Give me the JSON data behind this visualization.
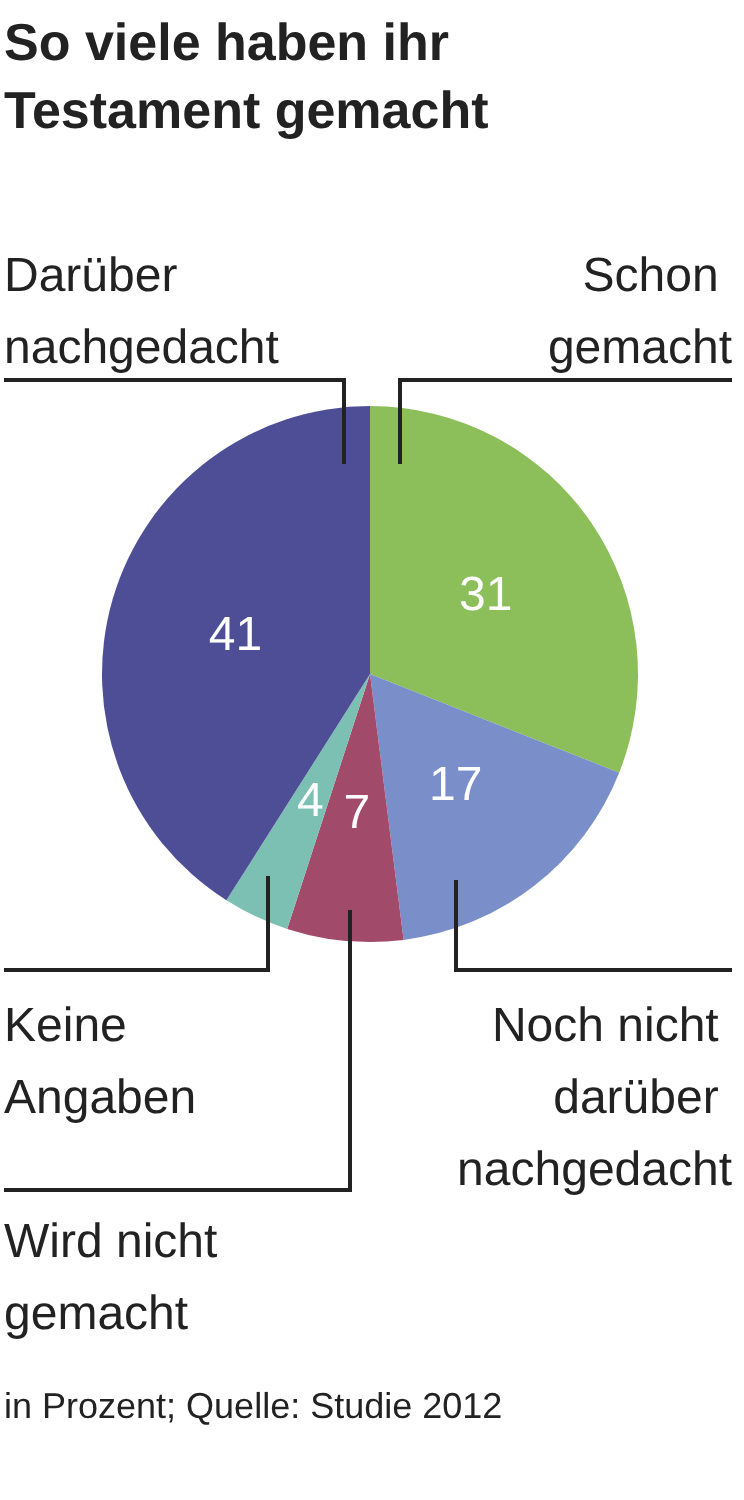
{
  "chart_data": {
    "type": "pie",
    "title": "So viele haben ihr Testament gemacht",
    "categories": [
      "Schon gemacht",
      "Noch nicht darüber nachgedacht",
      "Wird nicht gemacht",
      "Keine Angaben",
      "Darüber nachgedacht"
    ],
    "values": [
      31,
      17,
      7,
      4,
      41
    ],
    "colors": [
      "#8cbf5a",
      "#7a8fc9",
      "#a24a6a",
      "#7cc0b4",
      "#4e4e96"
    ],
    "data_labels": true,
    "annotations": [
      "in Prozent; Quelle: Studie 2012"
    ]
  }
}
